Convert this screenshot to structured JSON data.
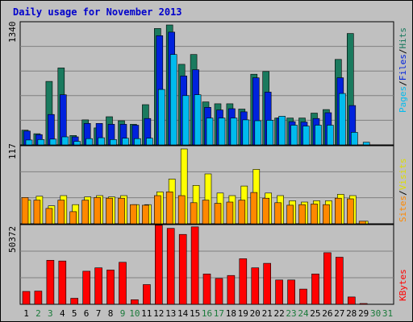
{
  "title": "Daily usage for November 2013",
  "colors": {
    "background": "#c0c0c0",
    "title": "#0000cc",
    "hits": "#1a7a5e",
    "files": "#0022dd",
    "pages": "#00bbee",
    "visits": "#ffff00",
    "sites": "#ff8800",
    "kbytes": "#ff0000",
    "day_weekday": "#000000",
    "day_weekend": "#1a7a3a"
  },
  "chart_data": [
    {
      "type": "bar",
      "ylabel_max": "1340",
      "legend": [
        "Hits",
        "Files",
        "Pages"
      ],
      "ylim": [
        0,
        1340
      ],
      "categories": [
        "1",
        "2",
        "3",
        "4",
        "5",
        "6",
        "7",
        "8",
        "9",
        "10",
        "11",
        "12",
        "13",
        "14",
        "15",
        "16",
        "17",
        "18",
        "19",
        "20",
        "21",
        "22",
        "23",
        "24",
        "25",
        "26",
        "27",
        "28",
        "29",
        "30",
        "31"
      ],
      "series": [
        {
          "name": "Hits",
          "values": [
            165,
            125,
            710,
            860,
            105,
            280,
            190,
            315,
            270,
            230,
            450,
            1300,
            1340,
            900,
            1010,
            480,
            460,
            460,
            400,
            790,
            820,
            300,
            300,
            300,
            355,
            395,
            955,
            1245,
            0,
            0,
            0
          ]
        },
        {
          "name": "Files",
          "values": [
            155,
            115,
            340,
            560,
            90,
            240,
            240,
            230,
            230,
            220,
            295,
            1220,
            1260,
            770,
            840,
            420,
            390,
            405,
            370,
            750,
            590,
            300,
            260,
            255,
            295,
            360,
            750,
            440,
            0,
            0,
            0
          ]
        },
        {
          "name": "Pages",
          "values": [
            55,
            60,
            65,
            90,
            40,
            70,
            80,
            60,
            75,
            70,
            75,
            620,
            1010,
            550,
            560,
            300,
            300,
            300,
            280,
            270,
            275,
            320,
            220,
            210,
            220,
            220,
            575,
            140,
            30,
            0,
            0
          ]
        }
      ]
    },
    {
      "type": "bar",
      "ylabel_max": "117",
      "legend": [
        "Visits",
        "Sites"
      ],
      "ylim": [
        0,
        117
      ],
      "categories": [
        "1",
        "2",
        "3",
        "4",
        "5",
        "6",
        "7",
        "8",
        "9",
        "10",
        "11",
        "12",
        "13",
        "14",
        "15",
        "16",
        "17",
        "18",
        "19",
        "20",
        "21",
        "22",
        "23",
        "24",
        "25",
        "26",
        "27",
        "28",
        "29",
        "30",
        "31"
      ],
      "series": [
        {
          "name": "Visits",
          "values": [
            37,
            43,
            28,
            44,
            30,
            42,
            44,
            42,
            44,
            30,
            30,
            50,
            70,
            117,
            60,
            78,
            48,
            44,
            59,
            85,
            48,
            44,
            36,
            34,
            36,
            36,
            46,
            44,
            4,
            0,
            0
          ]
        },
        {
          "name": "Sites",
          "values": [
            41,
            37,
            24,
            37,
            19,
            37,
            41,
            40,
            40,
            30,
            29,
            44,
            50,
            44,
            33,
            37,
            32,
            34,
            37,
            49,
            40,
            33,
            29,
            30,
            31,
            30,
            40,
            39,
            4,
            0,
            0
          ]
        }
      ]
    },
    {
      "type": "bar",
      "ylabel_max": "50372",
      "legend": [
        "KBytes"
      ],
      "ylim": [
        0,
        50372
      ],
      "categories": [
        "1",
        "2",
        "3",
        "4",
        "5",
        "6",
        "7",
        "8",
        "9",
        "10",
        "11",
        "12",
        "13",
        "14",
        "15",
        "16",
        "17",
        "18",
        "19",
        "20",
        "21",
        "22",
        "23",
        "24",
        "25",
        "26",
        "27",
        "28",
        "29",
        "30",
        "31"
      ],
      "series": [
        {
          "name": "KBytes",
          "values": [
            8500,
            8700,
            29000,
            28500,
            4000,
            21800,
            24000,
            22600,
            27700,
            3000,
            13000,
            52000,
            50000,
            46000,
            51000,
            20000,
            17000,
            19000,
            30000,
            24000,
            27000,
            16000,
            16000,
            10000,
            20000,
            34000,
            31000,
            4800,
            500,
            0,
            0
          ]
        }
      ]
    }
  ]
}
